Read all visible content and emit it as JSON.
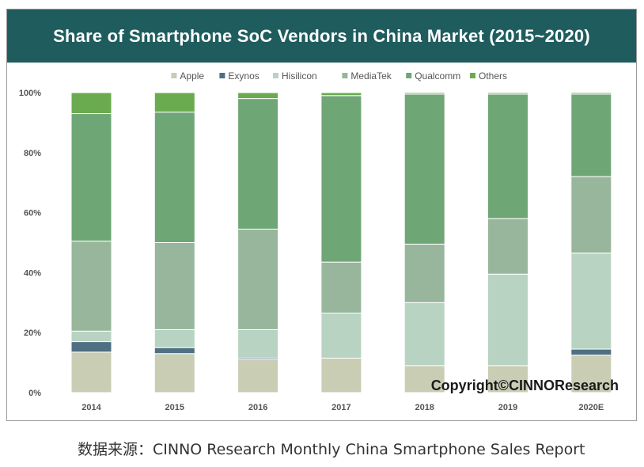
{
  "chart_data": {
    "type": "bar",
    "stacked": true,
    "title": "Share of Smartphone SoC Vendors in China Market (2015~2020)",
    "categories": [
      "2014",
      "2015",
      "2016",
      "2017",
      "2018",
      "2019",
      "2020E"
    ],
    "series": [
      {
        "name": "Apple",
        "color": "#c8cdb4",
        "values": [
          13.5,
          13.0,
          11.0,
          11.5,
          9.0,
          9.0,
          12.5
        ]
      },
      {
        "name": "Exynos",
        "color": "#4f6f83",
        "values": [
          3.5,
          2.0,
          0.5,
          0.0,
          0.0,
          0.0,
          2.0
        ]
      },
      {
        "name": "Hisilicon",
        "color": "#b8d3c1",
        "values": [
          3.5,
          6.0,
          9.5,
          15.0,
          21.0,
          30.5,
          32.0
        ]
      },
      {
        "name": "MediaTek",
        "color": "#97b69b",
        "values": [
          30.0,
          29.0,
          33.5,
          17.0,
          19.5,
          18.5,
          25.5
        ]
      },
      {
        "name": "Qualcomm",
        "color": "#6fa675",
        "values": [
          42.5,
          43.5,
          43.5,
          55.5,
          50.0,
          41.5,
          27.5
        ]
      },
      {
        "name": "Others",
        "color": "#6aab4f",
        "values": [
          7.0,
          6.5,
          2.0,
          1.0,
          0.5,
          0.5,
          0.5
        ]
      }
    ],
    "yticks": [
      "0%",
      "20%",
      "40%",
      "60%",
      "80%",
      "100%"
    ],
    "ylim": [
      0,
      100
    ],
    "legend_position": "top",
    "grid": false,
    "watermark": "Copyright©CINNOResearch"
  },
  "caption": "数据来源：CINNO Research Monthly China Smartphone Sales Report"
}
